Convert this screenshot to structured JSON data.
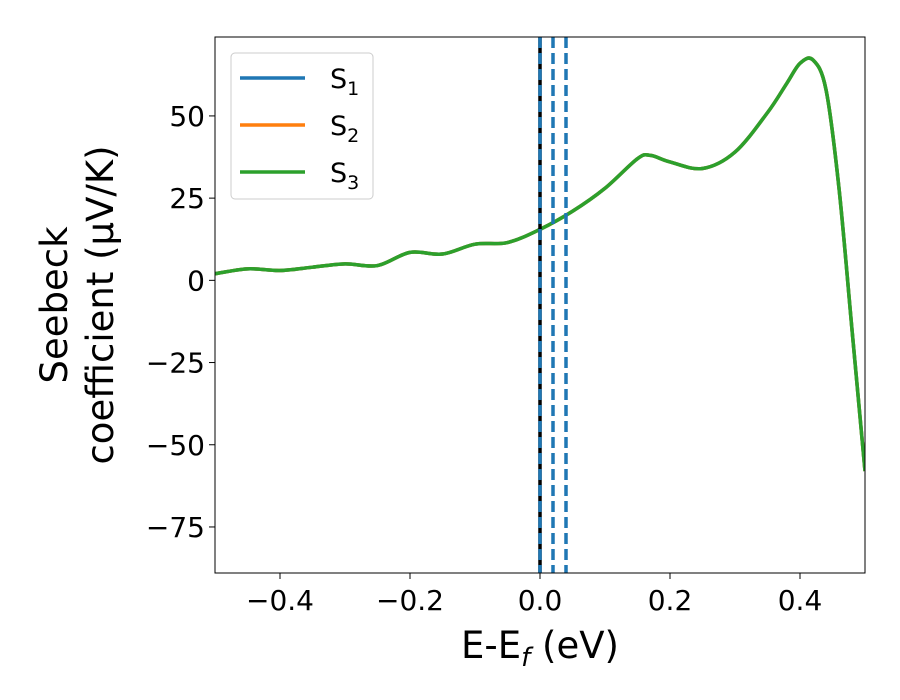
{
  "chart_data": {
    "type": "line",
    "xlabel_main": "E-E",
    "xlabel_sub": "f",
    "xlabel_tail": " (eV)",
    "ylabel_line1": "Seebeck",
    "ylabel_line2": "coefficient  (μV/K)",
    "xlim": [
      -0.5,
      0.5
    ],
    "ylim": [
      -89,
      74
    ],
    "xticks": [
      -0.4,
      -0.2,
      0.0,
      0.2,
      0.4
    ],
    "xtick_labels": [
      "−0.4",
      "−0.2",
      "0.0",
      "0.2",
      "0.4"
    ],
    "yticks": [
      50,
      25,
      0,
      -25,
      -50,
      -75
    ],
    "ytick_labels": [
      "50",
      "25",
      "0",
      "−25",
      "−50",
      "−75"
    ],
    "grid": false,
    "legend_position": "top-left",
    "series": [
      {
        "name_main": "S",
        "name_sub": "1",
        "color": "#1f77b4",
        "x": [
          -0.5,
          -0.45,
          -0.4,
          -0.35,
          -0.3,
          -0.25,
          -0.2,
          -0.15,
          -0.1,
          -0.05,
          0.0,
          0.05,
          0.1,
          0.15,
          0.17,
          0.2,
          0.25,
          0.3,
          0.35,
          0.38,
          0.4,
          0.42,
          0.44,
          0.46,
          0.48,
          0.5
        ],
        "y": [
          2,
          3.5,
          3,
          4,
          5,
          4.5,
          8.5,
          8,
          11,
          11.5,
          15.5,
          21,
          28,
          37,
          38,
          36,
          34,
          39,
          51,
          60,
          66,
          67,
          58,
          28,
          -15,
          -58
        ]
      },
      {
        "name_main": "S",
        "name_sub": "2",
        "color": "#ff7f0e",
        "x": [
          -0.5,
          -0.45,
          -0.4,
          -0.35,
          -0.3,
          -0.25,
          -0.2,
          -0.15,
          -0.1,
          -0.05,
          0.0,
          0.05,
          0.1,
          0.15,
          0.17,
          0.2,
          0.25,
          0.3,
          0.35,
          0.38,
          0.4,
          0.42,
          0.44,
          0.46,
          0.48,
          0.5
        ],
        "y": [
          2,
          3.5,
          3,
          4,
          5,
          4.5,
          8.5,
          8,
          11,
          11.5,
          15.5,
          21,
          28,
          37,
          38,
          36,
          34,
          39,
          51,
          60,
          66,
          67,
          58,
          28,
          -15,
          -58
        ]
      },
      {
        "name_main": "S",
        "name_sub": "3",
        "color": "#2ca02c",
        "x": [
          -0.5,
          -0.45,
          -0.4,
          -0.35,
          -0.3,
          -0.25,
          -0.2,
          -0.15,
          -0.1,
          -0.05,
          0.0,
          0.05,
          0.1,
          0.15,
          0.17,
          0.2,
          0.25,
          0.3,
          0.35,
          0.38,
          0.4,
          0.42,
          0.44,
          0.46,
          0.48,
          0.5
        ],
        "y": [
          2,
          3.5,
          3,
          4,
          5,
          4.5,
          8.5,
          8,
          11,
          11.5,
          15.5,
          21,
          28,
          37,
          38,
          36,
          34,
          39,
          51,
          60,
          66,
          67,
          58,
          28,
          -15,
          -58
        ]
      }
    ],
    "vlines": [
      {
        "x": 0.0,
        "style": "solid",
        "color": "#000000"
      },
      {
        "x": 0.0,
        "style": "dashed",
        "color": "#1f77b4"
      },
      {
        "x": 0.02,
        "style": "dashed",
        "color": "#1f77b4"
      },
      {
        "x": 0.04,
        "style": "dashed",
        "color": "#1f77b4"
      }
    ]
  }
}
